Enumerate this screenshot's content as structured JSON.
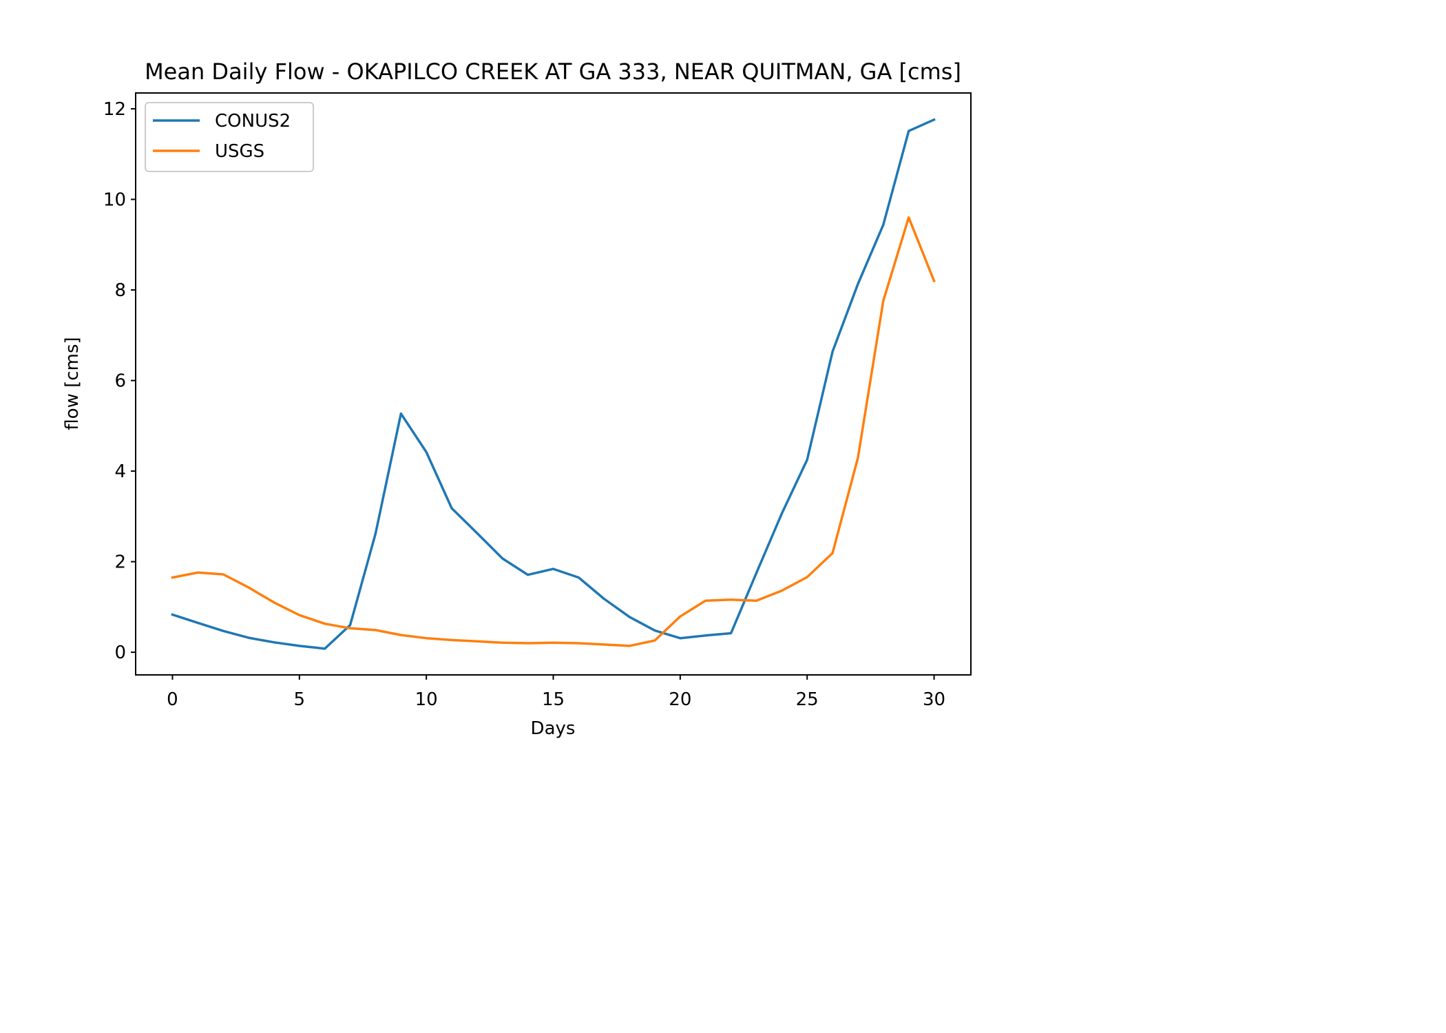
{
  "chart_data": {
    "type": "line",
    "title": "Mean Daily Flow - OKAPILCO CREEK AT GA 333, NEAR QUITMAN, GA [cms]",
    "xlabel": "Days",
    "ylabel": "flow [cms]",
    "xlim": [
      -1.45,
      31.45
    ],
    "ylim": [
      -0.5,
      12.35
    ],
    "xticks": [
      0,
      5,
      10,
      15,
      20,
      25,
      30
    ],
    "yticks": [
      0,
      2,
      4,
      6,
      8,
      10,
      12
    ],
    "grid": false,
    "legend_position": "upper left",
    "x": [
      0,
      1,
      2,
      3,
      4,
      5,
      6,
      7,
      8,
      9,
      10,
      11,
      12,
      13,
      14,
      15,
      16,
      17,
      18,
      19,
      20,
      21,
      22,
      23,
      24,
      25,
      26,
      27,
      28,
      29,
      30
    ],
    "series": [
      {
        "name": "CONUS2",
        "color": "#1f77b4",
        "values": [
          0.83,
          0.65,
          0.47,
          0.32,
          0.22,
          0.14,
          0.08,
          0.6,
          2.62,
          5.27,
          4.42,
          3.18,
          2.63,
          2.07,
          1.71,
          1.84,
          1.65,
          1.18,
          0.78,
          0.48,
          0.31,
          0.37,
          0.42,
          1.75,
          3.06,
          4.25,
          6.64,
          8.13,
          9.44,
          11.51,
          11.76
        ]
      },
      {
        "name": "USGS",
        "color": "#ff7f0e",
        "values": [
          1.65,
          1.76,
          1.72,
          1.43,
          1.1,
          0.82,
          0.63,
          0.53,
          0.49,
          0.38,
          0.31,
          0.27,
          0.24,
          0.21,
          0.2,
          0.21,
          0.2,
          0.17,
          0.14,
          0.26,
          0.79,
          1.14,
          1.16,
          1.14,
          1.36,
          1.66,
          2.19,
          4.29,
          7.76,
          9.6,
          8.2
        ]
      }
    ]
  }
}
